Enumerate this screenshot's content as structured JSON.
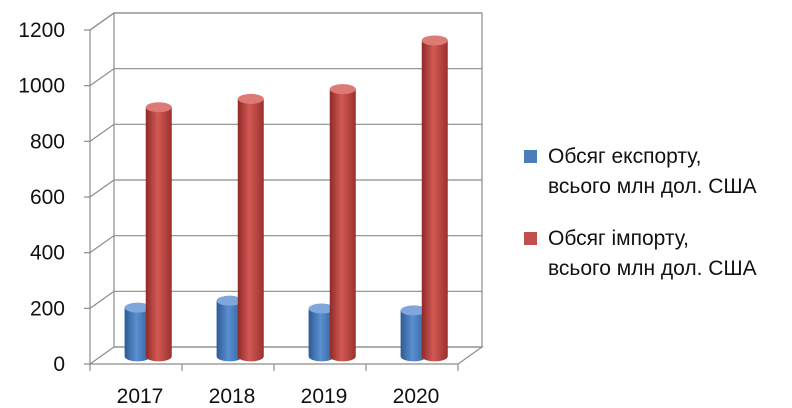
{
  "chart_data": {
    "type": "bar",
    "categories": [
      "2017",
      "2018",
      "2019",
      "2020"
    ],
    "series": [
      {
        "name": "Обсяг експорту, всього млн дол. США",
        "values": [
          175,
          200,
          172,
          165
        ],
        "color": "#4a7ebb"
      },
      {
        "name": "Обсяг імпорту, всього млн дол. США",
        "values": [
          895,
          925,
          960,
          1135
        ],
        "color": "#c0504d"
      }
    ],
    "yticks": [
      "0",
      "200",
      "400",
      "600",
      "800",
      "1000",
      "1200"
    ],
    "ylim": [
      0,
      1200
    ],
    "grid": true,
    "legend": "right",
    "title": "",
    "xlabel": "",
    "ylabel": ""
  },
  "legend": {
    "items": [
      {
        "line1": "Обсяг експорту,",
        "line2": "всього млн дол. США"
      },
      {
        "line1": "Обсяг імпорту,",
        "line2": "всього млн дол. США"
      }
    ]
  }
}
